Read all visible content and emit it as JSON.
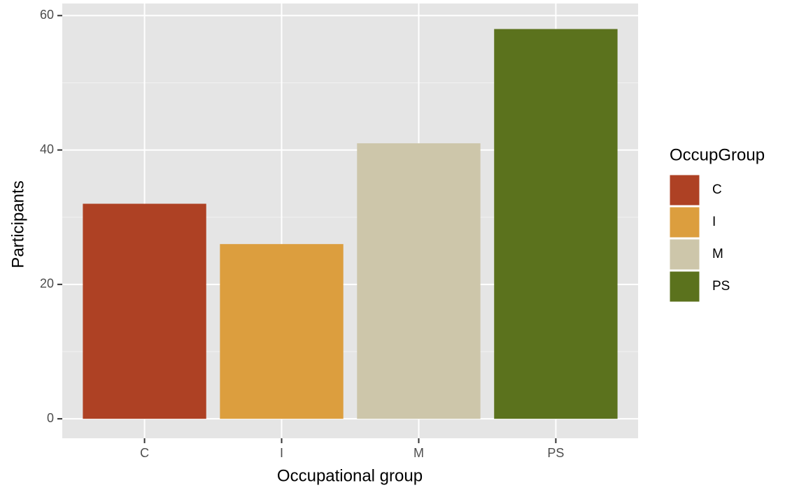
{
  "chart_data": {
    "type": "bar",
    "x_label": "Occupational group",
    "y_label": "Participants",
    "categories": [
      "C",
      "I",
      "M",
      "PS"
    ],
    "values": [
      32,
      26,
      41,
      58
    ],
    "colors": [
      "#ae4124",
      "#dc9e3e",
      "#cdc6aa",
      "#5b721d"
    ],
    "ylim": [
      -2.9,
      61.8
    ],
    "yticks": [
      0,
      20,
      40,
      60
    ],
    "grid": true,
    "legend_title": "OccupGroup",
    "legend_position": "right"
  }
}
